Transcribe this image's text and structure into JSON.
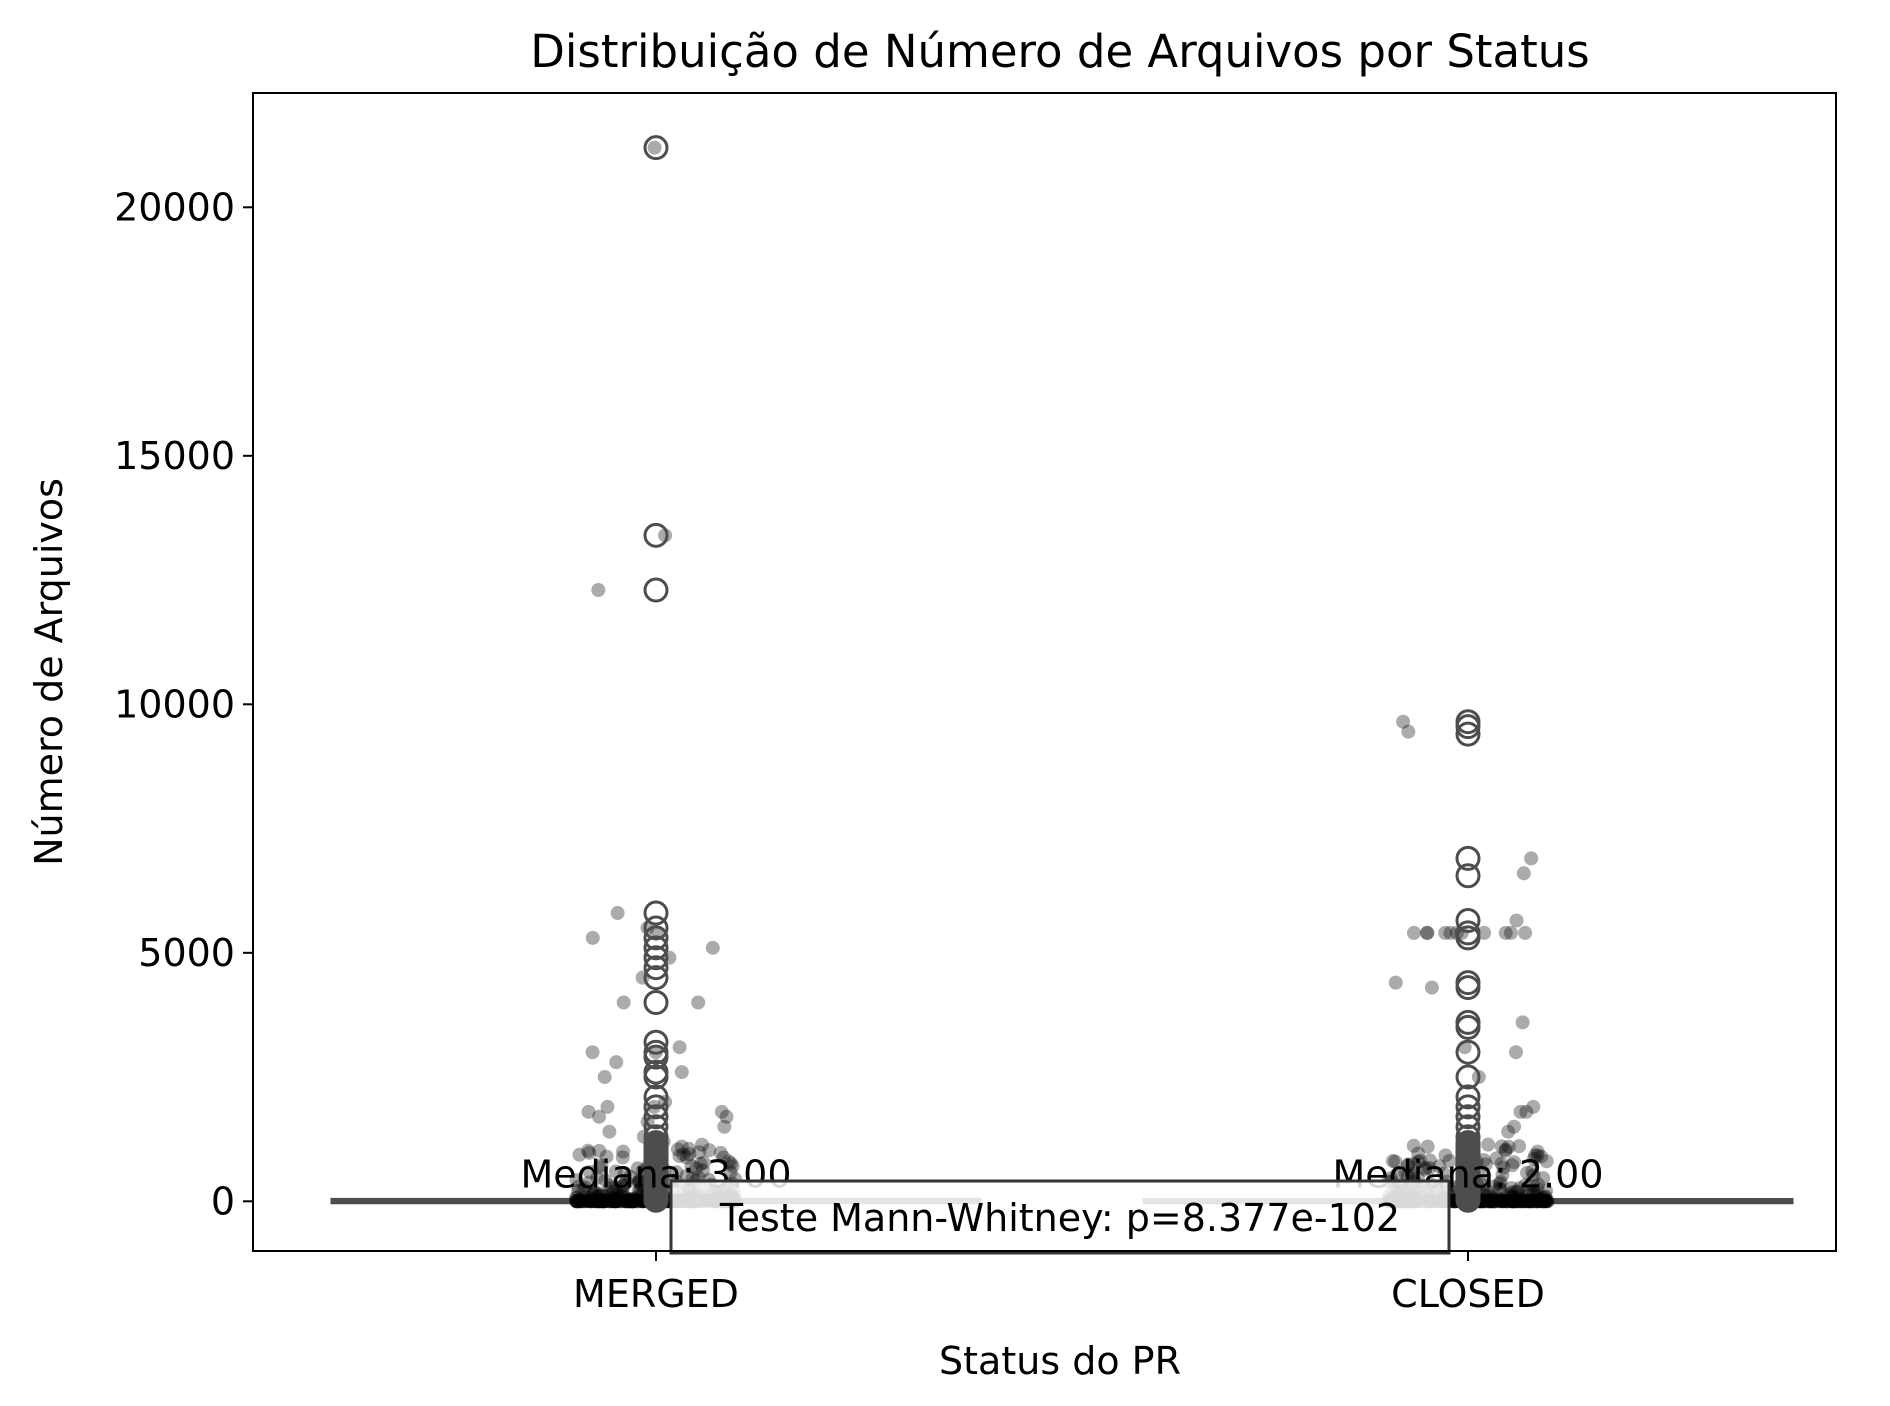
{
  "chart_data": {
    "type": "box",
    "title": "Distribuição de Número de Arquivos por Status",
    "xlabel": "Status do PR",
    "ylabel": "Número de Arquivos",
    "categories": [
      "MERGED",
      "CLOSED"
    ],
    "ylim": [
      -1000,
      22300
    ],
    "yticks": [
      0,
      5000,
      10000,
      15000,
      20000
    ],
    "ytick_labels": [
      "0",
      "5000",
      "10000",
      "15000",
      "20000"
    ],
    "grid": false,
    "legend": "none",
    "boxes": [
      {
        "name": "MERGED",
        "median": 3,
        "q1": 1,
        "q3": 8,
        "whisker_low": 1,
        "whisker_high": 19
      },
      {
        "name": "CLOSED",
        "median": 2,
        "q1": 1,
        "q3": 6,
        "whisker_low": 1,
        "whisker_high": 14
      }
    ],
    "median_labels": [
      {
        "category": "MERGED",
        "text": "Mediana: 3.00"
      },
      {
        "category": "CLOSED",
        "text": "Mediana: 2.00"
      }
    ],
    "outliers": [
      {
        "category": "MERGED",
        "values": [
          21200,
          13400,
          12300,
          5800,
          5500,
          5300,
          5100,
          4900,
          4700,
          4500,
          4000,
          3200,
          3000,
          2900,
          2600,
          2500,
          2100,
          1900,
          1700,
          1500,
          1300,
          1100,
          900,
          700,
          500,
          300
        ]
      },
      {
        "category": "CLOSED",
        "values": [
          9650,
          9550,
          9400,
          6900,
          6550,
          5650,
          5400,
          5300,
          4400,
          4300,
          3600,
          3500,
          3000,
          2500,
          2100,
          1900,
          1700,
          1500,
          1300,
          1100,
          900,
          700,
          500,
          300
        ]
      }
    ],
    "jitter_points": [
      {
        "category": "MERGED",
        "values": [
          21200,
          13400,
          12300,
          5800,
          5500,
          5400,
          5300,
          5100,
          4900,
          4500,
          4000,
          4000,
          3100,
          3000,
          3000,
          2800,
          2600,
          2500,
          2000,
          1900,
          1900,
          1800,
          1800,
          1700,
          1700,
          1600,
          1500,
          1400,
          1300,
          1200,
          1100,
          1000,
          900,
          800,
          700,
          600,
          500
        ]
      },
      {
        "category": "CLOSED",
        "values": [
          9650,
          9450,
          6900,
          6600,
          5650,
          5400,
          5400,
          5400,
          5400,
          5400,
          5400,
          5400,
          5400,
          5400,
          5400,
          5400,
          4400,
          4300,
          3600,
          3100,
          3000,
          2500,
          1900,
          1800,
          1800,
          1500,
          1400,
          1100,
          1000,
          900,
          800,
          700,
          600
        ]
      }
    ],
    "annotation": "Teste Mann-Whitney: p=8.377e-102",
    "colors": {
      "box_face": "#d9d9d9",
      "box_edge": "#4d4d4d",
      "outlier_edge": "#4d4d4d",
      "jitter_point": "#000000",
      "axes": "#000000"
    }
  }
}
